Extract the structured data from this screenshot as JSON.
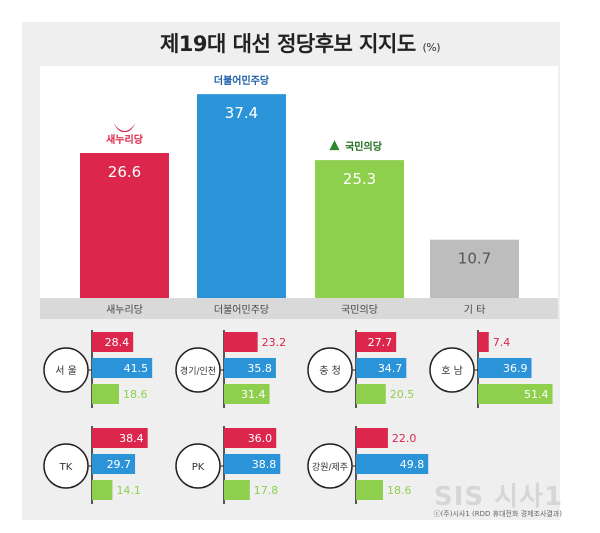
{
  "title": "제19대 대선 정당후보 지지도",
  "unit": "(%)",
  "chart_data": {
    "type": "bar",
    "categories": [
      "새누리당",
      "더불어민주당",
      "국민의당",
      "기 타"
    ],
    "values": [
      26.6,
      37.4,
      25.3,
      10.7
    ],
    "party_logos": [
      "새누리당",
      "더불어민주당",
      "국민의당",
      ""
    ],
    "colors": [
      "#dd264b",
      "#2b93d8",
      "#8fcf4e",
      "#bdbdbd"
    ],
    "ylim": [
      0,
      40
    ],
    "regions": [
      {
        "name": "서 울",
        "values": [
          28.4,
          41.5,
          18.6
        ]
      },
      {
        "name": "경기/인천",
        "values": [
          23.2,
          35.8,
          31.4
        ]
      },
      {
        "name": "충 청",
        "values": [
          27.7,
          34.7,
          20.5
        ]
      },
      {
        "name": "호 남",
        "values": [
          7.4,
          36.9,
          51.4
        ]
      },
      {
        "name": "TK",
        "values": [
          38.4,
          29.7,
          14.1
        ]
      },
      {
        "name": "PK",
        "values": [
          36.0,
          38.8,
          17.8
        ]
      },
      {
        "name": "강원/제주",
        "values": [
          22.0,
          49.8,
          18.6
        ]
      }
    ]
  },
  "watermark": "SIS 시사1",
  "source": "ⓒ(주)시사1 (RDD 휴대전화 경제조사결과)"
}
